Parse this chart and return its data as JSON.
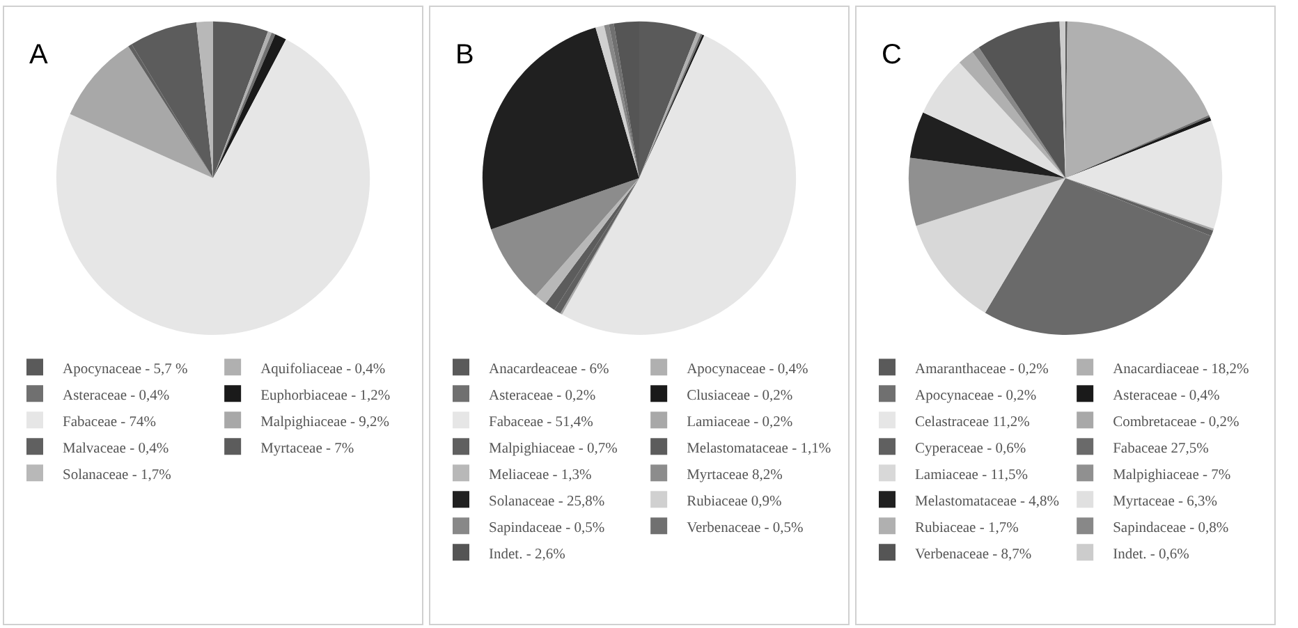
{
  "chart_data": [
    {
      "type": "pie",
      "title": "A",
      "legend": "bottom",
      "categories": [
        "Apocynaceae - 5,7 %",
        "Aquifoliaceae - 0,4%",
        "Asteraceae - 0,4%",
        "Euphorbiaceae - 1,2%",
        "Fabaceae - 74%",
        "Malpighiaceae - 9,2%",
        "Malvaceae - 0,4%",
        "Myrtaceae - 7%",
        "Solanaceae - 1,7%"
      ],
      "values": [
        5.7,
        0.4,
        0.4,
        1.2,
        74,
        9.2,
        0.4,
        7,
        1.7
      ],
      "colors": [
        "#5a5a5a",
        "#b0b0b0",
        "#707070",
        "#1a1a1a",
        "#e6e6e6",
        "#a8a8a8",
        "#606060",
        "#5c5c5c",
        "#b8b8b8"
      ]
    },
    {
      "type": "pie",
      "title": "B",
      "legend": "bottom",
      "categories": [
        "Anacardeaceae - 6%",
        "Apocynaceae - 0,4%",
        "Asteraceae - 0,2%",
        "Clusiaceae - 0,2%",
        "Fabaceae - 51,4%",
        "Lamiaceae - 0,2%",
        "Malpighiaceae - 0,7%",
        "Melastomataceae - 1,1%",
        "Meliaceae - 1,3%",
        "Myrtaceae 8,2%",
        "Solanaceae - 25,8%",
        "Rubiaceae 0,9%",
        "Sapindaceae - 0,5%",
        "Verbenaceae - 0,5%",
        "Indet. - 2,6%"
      ],
      "values": [
        6,
        0.4,
        0.2,
        0.2,
        51.4,
        0.2,
        0.7,
        1.1,
        1.3,
        8.2,
        25.8,
        0.9,
        0.5,
        0.5,
        2.6
      ],
      "colors": [
        "#5a5a5a",
        "#b0b0b0",
        "#707070",
        "#1a1a1a",
        "#e6e6e6",
        "#a8a8a8",
        "#606060",
        "#5c5c5c",
        "#b8b8b8",
        "#8c8c8c",
        "#202020",
        "#d0d0d0",
        "#888888",
        "#707070",
        "#555555"
      ]
    },
    {
      "type": "pie",
      "title": "C",
      "legend": "bottom",
      "categories": [
        "Amaranthaceae - 0,2%",
        "Anacardiaceae - 18,2%",
        "Apocynaceae - 0,2%",
        "Asteraceae - 0,4%",
        "Celastraceae 11,2%",
        "Combretaceae - 0,2%",
        "Cyperaceae - 0,6%",
        "Fabaceae 27,5%",
        "Lamiaceae - 11,5%",
        "Malpighiaceae - 7%",
        "Melastomataceae - 4,8%",
        "Myrtaceae - 6,3%",
        "Rubiaceae - 1,7%",
        "Sapindaceae - 0,8%",
        "Verbenaceae - 8,7%",
        "Indet. - 0,6%"
      ],
      "values": [
        0.2,
        18.2,
        0.2,
        0.4,
        11.2,
        0.2,
        0.6,
        27.5,
        11.5,
        7,
        4.8,
        6.3,
        1.7,
        0.8,
        8.7,
        0.6
      ],
      "colors": [
        "#5a5a5a",
        "#b0b0b0",
        "#707070",
        "#1a1a1a",
        "#e6e6e6",
        "#a8a8a8",
        "#606060",
        "#6a6a6a",
        "#d8d8d8",
        "#909090",
        "#202020",
        "#e0e0e0",
        "#b0b0b0",
        "#888888",
        "#555555",
        "#cccccc"
      ]
    }
  ]
}
